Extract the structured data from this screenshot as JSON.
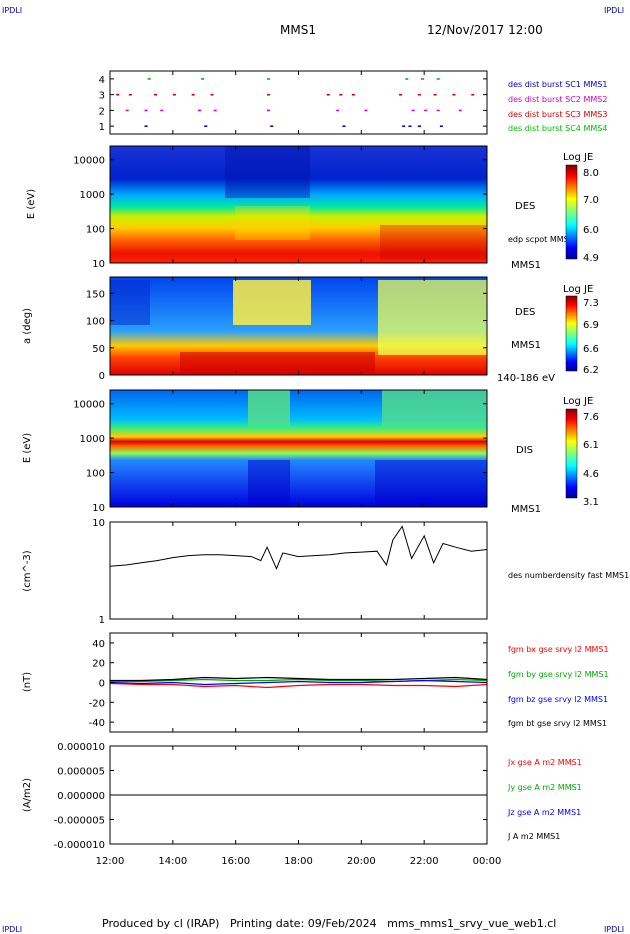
{
  "header": {
    "corner_top_left": "IPDLI",
    "corner_top_right": "IPDLI",
    "corner_bottom_left": "IPDLI",
    "corner_bottom_right": "IPDLI",
    "title": "MMS1",
    "date": "12/Nov/2017 12:00"
  },
  "footer": {
    "text": "Produced by cl (IRAP)   Printing date: 09/Feb/2024   mms_mms1_srvy_vue_web1.cl"
  },
  "colors": {
    "frame": "#000000",
    "corner_label": "#0000cc",
    "sc1": "#0000cc",
    "sc2": "#cc00cc",
    "sc3": "#cc0000",
    "sc4": "#00bb00",
    "bx": "#ff0000",
    "by": "#00aa00",
    "bz": "#0000ff",
    "bt": "#000000"
  },
  "chart_data": [
    {
      "type": "scatter",
      "id": "burst-availability",
      "ylim": [
        0.5,
        4.5
      ],
      "yticks": [
        "1",
        "2",
        "3",
        "4"
      ],
      "legend": [
        "des dist burst SC1 MMS1",
        "des dist burst SC2 MMS2",
        "des dist burst SC3 MMS3",
        "des dist burst SC4 MMS4"
      ],
      "series": [
        {
          "name": "des dist burst SC1 MMS1",
          "y": 1,
          "x": [
            13.1,
            15.0,
            17.1,
            19.4,
            21.3,
            21.5,
            21.8,
            22.5
          ]
        },
        {
          "name": "des dist burst SC2 MMS2",
          "y": 2,
          "x": [
            12.5,
            13.1,
            13.6,
            14.8,
            15.3,
            17.0,
            19.2,
            20.1,
            21.6,
            22.0,
            22.4,
            23.1
          ]
        },
        {
          "name": "des dist burst SC3 MMS3",
          "y": 3,
          "x": [
            12.2,
            12.6,
            13.4,
            14.0,
            14.6,
            15.2,
            17.0,
            18.9,
            19.3,
            19.7,
            21.2,
            21.8,
            22.3,
            22.9,
            23.5
          ]
        },
        {
          "name": "des dist burst SC4 MMS4",
          "y": 4,
          "x": [
            13.2,
            14.9,
            17.0,
            21.4,
            21.9,
            22.4
          ]
        }
      ]
    },
    {
      "type": "heatmap",
      "id": "des-energy",
      "ylabel": "E (eV)",
      "scale": "log",
      "yticks": [
        "10",
        "100",
        "1000",
        "10000"
      ],
      "side_label": "DES",
      "overlay_label": "edp scpot MMS1",
      "sc_label": "MMS1",
      "colorbar": {
        "title": "Log JE",
        "ticks": [
          "8.0",
          "7.0",
          "6.0",
          "4.9"
        ],
        "range": [
          4.9,
          8.0
        ]
      }
    },
    {
      "type": "heatmap",
      "id": "des-pitch",
      "ylabel": "a (deg)",
      "ylim": [
        0,
        180
      ],
      "yticks": [
        "0",
        "50",
        "100",
        "150"
      ],
      "side_label": "DES",
      "sc_label": "MMS1",
      "energy_label": "140-186 eV",
      "colorbar": {
        "title": "Log JE",
        "ticks": [
          "7.3",
          "6.9",
          "6.6",
          "6.2"
        ],
        "range": [
          6.2,
          7.3
        ]
      }
    },
    {
      "type": "heatmap",
      "id": "dis-energy",
      "ylabel": "E (eV)",
      "scale": "log",
      "yticks": [
        "10",
        "100",
        "1000",
        "10000"
      ],
      "side_label": "DIS",
      "sc_label": "MMS1",
      "colorbar": {
        "title": "Log JE",
        "ticks": [
          "7.6",
          "6.1",
          "4.6",
          "3.1"
        ],
        "range": [
          3.1,
          7.6
        ]
      }
    },
    {
      "type": "line",
      "id": "density",
      "ylabel": "(cm^-3)",
      "scale": "log",
      "ylim": [
        1,
        10
      ],
      "yticks": [
        "1",
        "10"
      ],
      "series": [
        {
          "name": "des numberdensity fast MMS1",
          "x": [
            12.0,
            12.5,
            13.0,
            13.5,
            14.0,
            14.5,
            15.0,
            15.5,
            16.0,
            16.5,
            16.8,
            17.0,
            17.3,
            17.5,
            18.0,
            18.5,
            19.0,
            19.5,
            20.0,
            20.5,
            20.8,
            21.0,
            21.3,
            21.6,
            22.0,
            22.3,
            22.6,
            23.0,
            23.5,
            24.0
          ],
          "y": [
            3.5,
            3.6,
            3.8,
            4.0,
            4.3,
            4.5,
            4.6,
            4.6,
            4.5,
            4.4,
            4.0,
            5.5,
            3.3,
            4.8,
            4.4,
            4.5,
            4.6,
            4.8,
            4.9,
            5.0,
            3.6,
            6.5,
            9.0,
            4.2,
            7.2,
            3.8,
            6.0,
            5.5,
            5.0,
            5.2
          ]
        }
      ]
    },
    {
      "type": "line",
      "id": "magnetic-field",
      "ylabel": "(nT)",
      "ylim": [
        -50,
        50
      ],
      "yticks": [
        "-40",
        "-20",
        "0",
        "20",
        "40"
      ],
      "series": [
        {
          "name": "fgm bx gse srvy l2 MMS1",
          "x": [
            12,
            13,
            14,
            15,
            16,
            17,
            18,
            19,
            20,
            21,
            22,
            23,
            24
          ],
          "y": [
            -1,
            -2,
            -2,
            -4,
            -3,
            -5,
            -3,
            -2,
            -2,
            -3,
            -3,
            -4,
            -2
          ]
        },
        {
          "name": "fgm by gse srvy l2 MMS1",
          "x": [
            12,
            13,
            14,
            15,
            16,
            17,
            18,
            19,
            20,
            21,
            22,
            23,
            24
          ],
          "y": [
            1,
            1,
            2,
            3,
            2,
            2,
            3,
            2,
            2,
            1,
            2,
            3,
            2
          ]
        },
        {
          "name": "fgm bz gse srvy l2 MMS1",
          "x": [
            12,
            13,
            14,
            15,
            16,
            17,
            18,
            19,
            20,
            21,
            22,
            23,
            24
          ],
          "y": [
            0,
            -1,
            0,
            -2,
            -1,
            0,
            1,
            0,
            0,
            1,
            2,
            1,
            0
          ]
        },
        {
          "name": "fgm bt gse srvy l2 MMS1",
          "x": [
            12,
            13,
            14,
            15,
            16,
            17,
            18,
            19,
            20,
            21,
            22,
            23,
            24
          ],
          "y": [
            2,
            2,
            3,
            5,
            4,
            5,
            4,
            3,
            3,
            3,
            4,
            5,
            3
          ]
        }
      ]
    },
    {
      "type": "line",
      "id": "current-density",
      "ylabel": "(A/m2)",
      "ylim": [
        -1e-05,
        1e-05
      ],
      "yticks": [
        "-0.000010",
        "-0.000005",
        "0.000000",
        "0.000005",
        "0.000010"
      ],
      "series": [
        {
          "name": "Jx gse A m2 MMS1",
          "x": [
            12,
            24
          ],
          "y": [
            0,
            0
          ]
        },
        {
          "name": "Jy gse A m2 MMS1",
          "x": [
            12,
            24
          ],
          "y": [
            0,
            0
          ]
        },
        {
          "name": "Jz gse A m2 MMS1",
          "x": [
            12,
            24
          ],
          "y": [
            0,
            0
          ]
        },
        {
          "name": "J A m2 MMS1",
          "x": [
            12,
            24
          ],
          "y": [
            0,
            0
          ]
        }
      ]
    }
  ],
  "time_axis": {
    "range_hours": [
      12,
      24
    ],
    "ticks": [
      "12:00",
      "14:00",
      "16:00",
      "18:00",
      "20:00",
      "22:00",
      "00:00"
    ]
  }
}
